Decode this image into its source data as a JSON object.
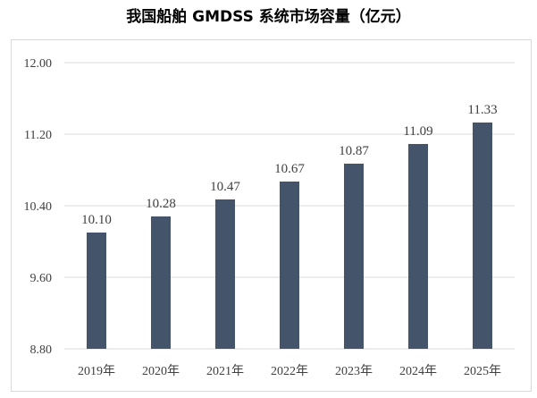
{
  "chart_data": {
    "type": "bar",
    "title": "我国船舶 GMDSS 系统市场容量（亿元）",
    "categories": [
      "2019年",
      "2020年",
      "2021年",
      "2022年",
      "2023年",
      "2024年",
      "2025年"
    ],
    "values": [
      10.1,
      10.28,
      10.47,
      10.67,
      10.87,
      11.09,
      11.33
    ],
    "data_labels": [
      "10.10",
      "10.28",
      "10.47",
      "10.67",
      "10.87",
      "11.09",
      "11.33"
    ],
    "xlabel": "",
    "ylabel": "",
    "ylim": [
      8.8,
      12.0
    ],
    "yticks": [
      8.8,
      9.6,
      10.4,
      11.2,
      12.0
    ],
    "ytick_labels": [
      "8.80",
      "9.60",
      "10.40",
      "11.20",
      "12.00"
    ],
    "grid": true,
    "legend": "none",
    "bar_color": "#44546a",
    "grid_color": "#d9d9d9"
  }
}
